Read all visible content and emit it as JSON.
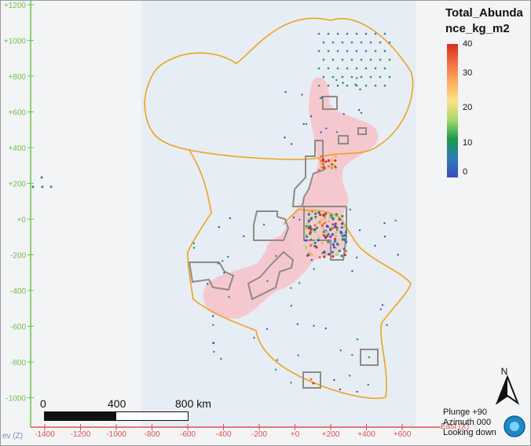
{
  "legend": {
    "title": "Total_Abundance_kg_m2",
    "ticks": [
      "40",
      "30",
      "20",
      "10",
      "0"
    ],
    "colors": [
      "#d7301f",
      "#f46d43",
      "#fdae61",
      "#fee08b",
      "#a6d96a",
      "#1a9850",
      "#2c7bb6",
      "#3b4cc0"
    ]
  },
  "axes": {
    "y_ticks": [
      "+1200",
      "+1000",
      "+800",
      "+600",
      "+400",
      "+200",
      "+0",
      "-200",
      "-400",
      "-600",
      "-800",
      "-1000"
    ],
    "x_ticks": [
      "-1400",
      "-1200",
      "-1000",
      "-800",
      "-600",
      "-400",
      "-200",
      "+0",
      "+200",
      "+400",
      "+600"
    ],
    "y_axis_label": "ev (Z)",
    "x_axis_label": "East (X)"
  },
  "scale_bar": {
    "label_0": "0",
    "label_mid": "400",
    "label_end": "800 km"
  },
  "compass": {
    "north_label": "N"
  },
  "view_info": {
    "plunge": "Plunge +90",
    "azimuth": "Azimuth 000",
    "looking": "Looking down"
  },
  "colors": {
    "boundary": "#f0a21c",
    "block": "#8f8a84",
    "heat": "#f6c3cc",
    "panel": "#e6edf4",
    "y_axis": "#6cc24a",
    "x_axis": "#d9534f"
  }
}
